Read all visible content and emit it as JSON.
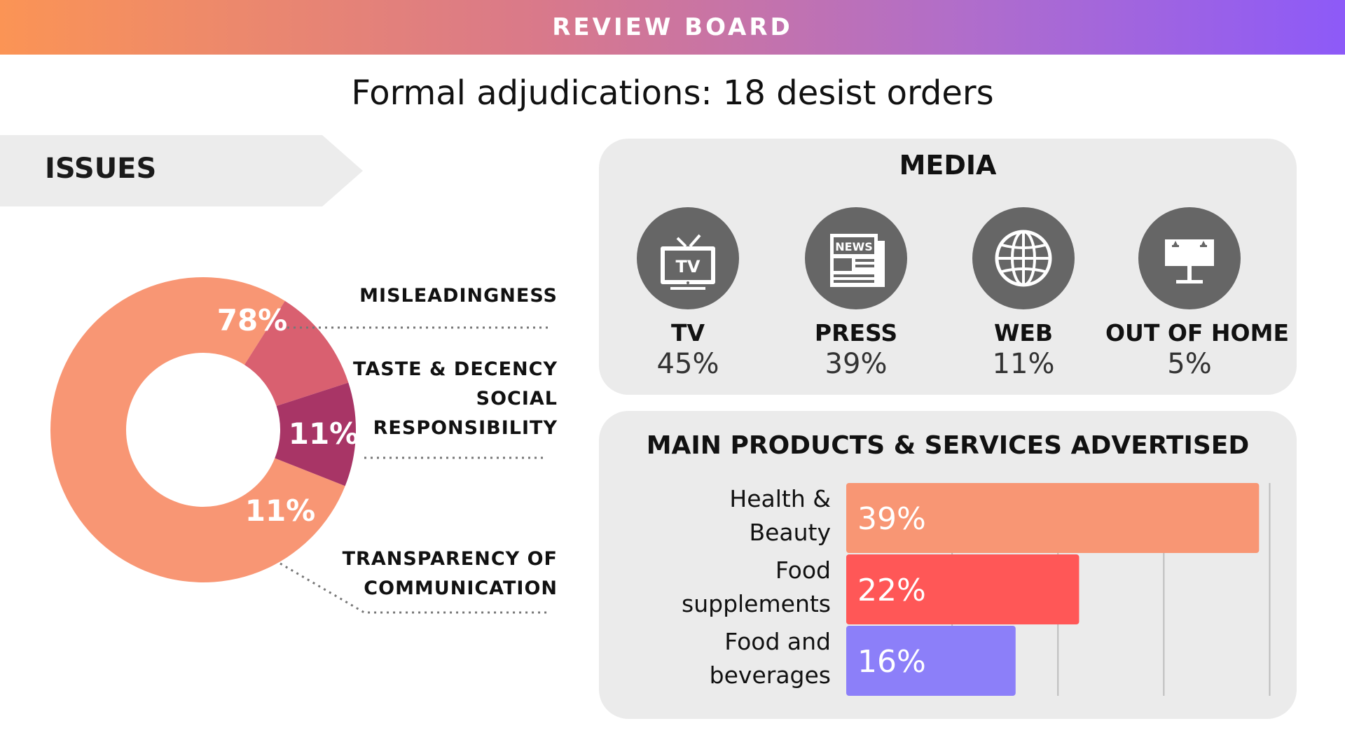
{
  "header": {
    "label": "REVIEW BOARD"
  },
  "title": "Formal adjudications: 18 desist orders",
  "issues": {
    "heading": "ISSUES",
    "chart_data": {
      "type": "pie",
      "categories": [
        "MISLEADINGNESS",
        "TASTE & DECENCY SOCIAL RESPONSIBILITY",
        "TRANSPARENCY OF COMMUNICATION"
      ],
      "values": [
        78,
        11,
        11
      ],
      "value_labels": [
        "78%",
        "11%",
        "11%"
      ],
      "colors": [
        "#f89674",
        "#d96070",
        "#a83566"
      ]
    },
    "labels": [
      {
        "lines": [
          "MISLEADINGNESS"
        ]
      },
      {
        "lines": [
          "TASTE & DECENCY",
          "SOCIAL",
          "RESPONSIBILITY"
        ]
      },
      {
        "lines": [
          "TRANSPARENCY OF",
          "COMMUNICATION"
        ]
      }
    ]
  },
  "media": {
    "heading": "MEDIA",
    "items": [
      {
        "name": "TV",
        "value": "45%",
        "icon": "tv-icon"
      },
      {
        "name": "PRESS",
        "value": "39%",
        "icon": "newspaper-icon"
      },
      {
        "name": "WEB",
        "value": "11%",
        "icon": "globe-icon"
      },
      {
        "name": "OUT OF HOME",
        "value": "5%",
        "icon": "billboard-icon"
      }
    ]
  },
  "products": {
    "heading": "MAIN PRODUCTS & SERVICES ADVERTISED",
    "chart_data": {
      "type": "bar",
      "orientation": "horizontal",
      "categories": [
        "Health & Beauty",
        "Food supplements",
        "Food and beverages"
      ],
      "category_lines": [
        [
          "Health &",
          "Beauty"
        ],
        [
          "Food",
          "supplements"
        ],
        [
          "Food and",
          "beverages"
        ]
      ],
      "values": [
        39,
        22,
        16
      ],
      "value_labels": [
        "39%",
        "22%",
        "16%"
      ],
      "colors": [
        "#f89674",
        "#ff5757",
        "#8c7ff9"
      ],
      "xlim": [
        0,
        45
      ],
      "grid": true
    }
  }
}
